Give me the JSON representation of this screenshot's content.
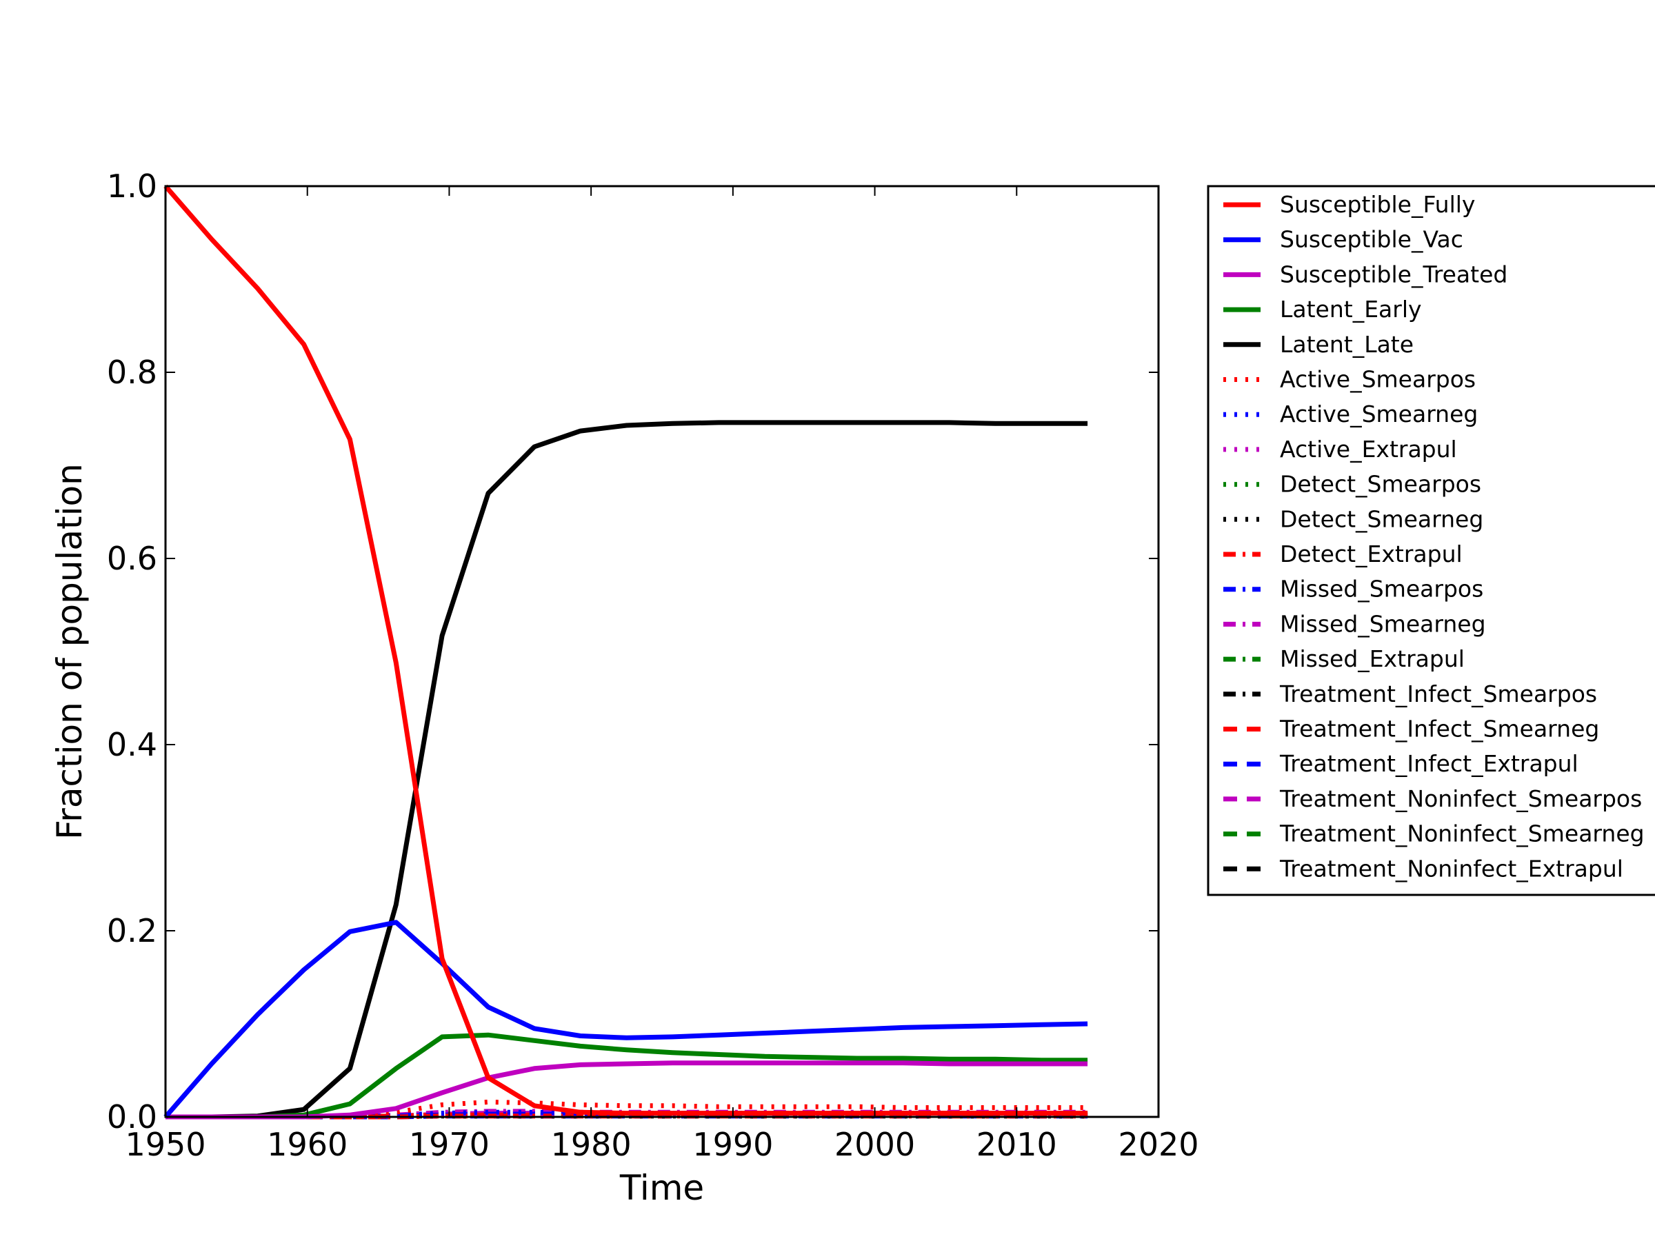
{
  "chart_data": {
    "type": "line",
    "xlabel": "Time",
    "ylabel": "Fraction of population",
    "xlim": [
      1950,
      2020
    ],
    "ylim": [
      0,
      1.0
    ],
    "xticks": [
      "1950",
      "1960",
      "1970",
      "1980",
      "1990",
      "2000",
      "2010",
      "2020"
    ],
    "yticks": [
      "0.0",
      "0.2",
      "0.4",
      "0.6",
      "0.8",
      "1.0"
    ],
    "grid": false,
    "legend_position": "outside-right",
    "x": [
      1950,
      1953.25,
      1956.5,
      1959.75,
      1963,
      1966.25,
      1969.5,
      1972.75,
      1976,
      1979.25,
      1982.5,
      1985.75,
      1989,
      1992.25,
      1995.5,
      1998.75,
      2002,
      2005.25,
      2008.5,
      2011.75,
      2015
    ],
    "series": [
      {
        "name": "Susceptible_Fully",
        "color": "#ff0000",
        "style": "solid",
        "values": [
          1.0,
          0.943,
          0.89,
          0.83,
          0.728,
          0.488,
          0.17,
          0.042,
          0.012,
          0.005,
          0.004,
          0.004,
          0.004,
          0.004,
          0.004,
          0.004,
          0.004,
          0.004,
          0.004,
          0.004,
          0.004
        ]
      },
      {
        "name": "Susceptible_Vac",
        "color": "#0000ff",
        "style": "solid",
        "values": [
          0.0,
          0.057,
          0.11,
          0.158,
          0.199,
          0.209,
          0.165,
          0.118,
          0.095,
          0.087,
          0.085,
          0.086,
          0.088,
          0.09,
          0.092,
          0.094,
          0.096,
          0.097,
          0.098,
          0.099,
          0.1
        ]
      },
      {
        "name": "Susceptible_Treated",
        "color": "#bf00bf",
        "style": "solid",
        "values": [
          0.0,
          0.0,
          0.0,
          0.0,
          0.002,
          0.009,
          0.026,
          0.042,
          0.052,
          0.056,
          0.057,
          0.058,
          0.058,
          0.058,
          0.058,
          0.058,
          0.058,
          0.057,
          0.057,
          0.057,
          0.057
        ]
      },
      {
        "name": "Latent_Early",
        "color": "#008000",
        "style": "solid",
        "values": [
          0.0,
          0.0,
          0.0,
          0.002,
          0.014,
          0.052,
          0.086,
          0.088,
          0.082,
          0.076,
          0.072,
          0.069,
          0.067,
          0.065,
          0.064,
          0.063,
          0.063,
          0.062,
          0.062,
          0.061,
          0.061
        ]
      },
      {
        "name": "Latent_Late",
        "color": "#000000",
        "style": "solid",
        "values": [
          0.0,
          0.0,
          0.001,
          0.008,
          0.052,
          0.228,
          0.517,
          0.67,
          0.72,
          0.737,
          0.743,
          0.745,
          0.746,
          0.746,
          0.746,
          0.746,
          0.746,
          0.746,
          0.745,
          0.745,
          0.745
        ]
      },
      {
        "name": "Active_Smearpos",
        "color": "#ff0000",
        "style": "dotted",
        "values": [
          0.0,
          0.0,
          0.0,
          0.0,
          0.001,
          0.005,
          0.013,
          0.016,
          0.015,
          0.013,
          0.012,
          0.012,
          0.011,
          0.011,
          0.011,
          0.011,
          0.01,
          0.01,
          0.01,
          0.01,
          0.01
        ]
      },
      {
        "name": "Active_Smearneg",
        "color": "#0000ff",
        "style": "dotted",
        "values": [
          0.0,
          0.0,
          0.0,
          0.0,
          0.0,
          0.002,
          0.004,
          0.005,
          0.005,
          0.004,
          0.004,
          0.004,
          0.004,
          0.004,
          0.004,
          0.004,
          0.004,
          0.004,
          0.004,
          0.004,
          0.004
        ]
      },
      {
        "name": "Active_Extrapul",
        "color": "#bf00bf",
        "style": "dotted",
        "values": [
          0.0,
          0.0,
          0.0,
          0.0,
          0.0,
          0.001,
          0.002,
          0.003,
          0.003,
          0.002,
          0.002,
          0.002,
          0.002,
          0.002,
          0.002,
          0.002,
          0.002,
          0.002,
          0.002,
          0.002,
          0.002
        ]
      },
      {
        "name": "Detect_Smearpos",
        "color": "#008000",
        "style": "dotted",
        "values": [
          0.0,
          0.0,
          0.0,
          0.0,
          0.0,
          0.001,
          0.002,
          0.002,
          0.002,
          0.002,
          0.002,
          0.002,
          0.002,
          0.002,
          0.002,
          0.002,
          0.002,
          0.002,
          0.002,
          0.002,
          0.002
        ]
      },
      {
        "name": "Detect_Smearneg",
        "color": "#000000",
        "style": "dotted",
        "values": [
          0.0,
          0.0,
          0.0,
          0.0,
          0.0,
          0.001,
          0.001,
          0.001,
          0.001,
          0.001,
          0.001,
          0.001,
          0.001,
          0.001,
          0.001,
          0.001,
          0.001,
          0.001,
          0.001,
          0.001,
          0.001
        ]
      },
      {
        "name": "Detect_Extrapul",
        "color": "#ff0000",
        "style": "dashdot",
        "values": [
          0.0,
          0.0,
          0.0,
          0.0,
          0.0,
          0.0,
          0.001,
          0.001,
          0.001,
          0.001,
          0.001,
          0.001,
          0.001,
          0.001,
          0.001,
          0.001,
          0.001,
          0.001,
          0.001,
          0.001,
          0.001
        ]
      },
      {
        "name": "Missed_Smearpos",
        "color": "#0000ff",
        "style": "dashdot",
        "values": [
          0.0,
          0.0,
          0.0,
          0.0,
          0.0,
          0.001,
          0.002,
          0.003,
          0.003,
          0.003,
          0.003,
          0.003,
          0.003,
          0.003,
          0.003,
          0.003,
          0.003,
          0.003,
          0.003,
          0.003,
          0.003
        ]
      },
      {
        "name": "Missed_Smearneg",
        "color": "#bf00bf",
        "style": "dashdot",
        "values": [
          0.0,
          0.0,
          0.0,
          0.0,
          0.0,
          0.002,
          0.005,
          0.006,
          0.006,
          0.005,
          0.005,
          0.005,
          0.005,
          0.005,
          0.005,
          0.005,
          0.005,
          0.005,
          0.005,
          0.005,
          0.005
        ]
      },
      {
        "name": "Missed_Extrapul",
        "color": "#008000",
        "style": "dashdot",
        "values": [
          0.0,
          0.0,
          0.0,
          0.0,
          0.0,
          0.001,
          0.002,
          0.002,
          0.002,
          0.002,
          0.002,
          0.002,
          0.002,
          0.002,
          0.002,
          0.002,
          0.002,
          0.002,
          0.002,
          0.002,
          0.002
        ]
      },
      {
        "name": "Treatment_Infect_Smearpos",
        "color": "#000000",
        "style": "dashdot",
        "values": [
          0.0,
          0.0,
          0.0,
          0.0,
          0.0,
          0.001,
          0.003,
          0.004,
          0.004,
          0.003,
          0.003,
          0.003,
          0.003,
          0.003,
          0.003,
          0.003,
          0.003,
          0.003,
          0.003,
          0.003,
          0.003
        ]
      },
      {
        "name": "Treatment_Infect_Smearneg",
        "color": "#ff0000",
        "style": "dashed",
        "values": [
          0.0,
          0.0,
          0.0,
          0.0,
          0.0,
          0.001,
          0.002,
          0.002,
          0.002,
          0.002,
          0.002,
          0.002,
          0.002,
          0.002,
          0.002,
          0.002,
          0.002,
          0.002,
          0.002,
          0.002,
          0.002
        ]
      },
      {
        "name": "Treatment_Infect_Extrapul",
        "color": "#0000ff",
        "style": "dashed",
        "values": [
          0.0,
          0.0,
          0.0,
          0.0,
          0.0,
          0.0,
          0.001,
          0.001,
          0.001,
          0.001,
          0.001,
          0.001,
          0.001,
          0.001,
          0.001,
          0.001,
          0.001,
          0.001,
          0.001,
          0.001,
          0.001
        ]
      },
      {
        "name": "Treatment_Noninfect_Smearpos",
        "color": "#bf00bf",
        "style": "dashed",
        "values": [
          0.0,
          0.0,
          0.0,
          0.0,
          0.0,
          0.001,
          0.003,
          0.004,
          0.004,
          0.004,
          0.004,
          0.004,
          0.004,
          0.004,
          0.004,
          0.004,
          0.004,
          0.004,
          0.004,
          0.004,
          0.004
        ]
      },
      {
        "name": "Treatment_Noninfect_Smearneg",
        "color": "#008000",
        "style": "dashed",
        "values": [
          0.0,
          0.0,
          0.0,
          0.0,
          0.0,
          0.001,
          0.002,
          0.003,
          0.003,
          0.003,
          0.003,
          0.003,
          0.003,
          0.003,
          0.003,
          0.003,
          0.003,
          0.003,
          0.003,
          0.003,
          0.003
        ]
      },
      {
        "name": "Treatment_Noninfect_Extrapul",
        "color": "#000000",
        "style": "dashed",
        "values": [
          0.0,
          0.0,
          0.0,
          0.0,
          0.0,
          0.001,
          0.001,
          0.002,
          0.002,
          0.002,
          0.002,
          0.002,
          0.002,
          0.002,
          0.002,
          0.002,
          0.002,
          0.002,
          0.002,
          0.002,
          0.002
        ]
      }
    ]
  }
}
